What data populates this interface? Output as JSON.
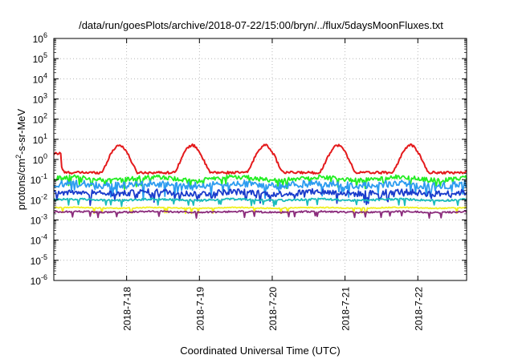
{
  "chart_data": {
    "type": "line",
    "title": "/data/run/goesPlots/archive/2018-07-22/15:00/bryn/../flux/5daysMoonFluxes.txt",
    "xlabel": "Coordinated Universal Time (UTC)",
    "ylabel": {
      "pre": "protons/cm",
      "sup": "2",
      "post": "-s-sr-MeV"
    },
    "yscale": "log",
    "ylim_exp": [
      -6,
      6
    ],
    "ytick_exps": [
      -6,
      -5,
      -4,
      -3,
      -2,
      -1,
      0,
      1,
      2,
      3,
      4,
      5,
      6
    ],
    "ytick_base": "10",
    "xlim_days": [
      0,
      5.67
    ],
    "xticks": [
      {
        "label": "2018-7-18",
        "day": 1
      },
      {
        "label": "2018-7-19",
        "day": 2
      },
      {
        "label": "2018-7-20",
        "day": 3
      },
      {
        "label": "2018-7-21",
        "day": 4
      },
      {
        "label": "2018-7-22",
        "day": 5
      }
    ],
    "grid": true,
    "series": [
      {
        "color": "#e41a1c",
        "base_log": -0.25,
        "amp": 0.6,
        "noise": 0.12,
        "kind": "red"
      },
      {
        "color": "#22ee22",
        "base_log": -0.95,
        "amp": 0.08,
        "noise": 0.22,
        "kind": "spiky"
      },
      {
        "color": "#2d9cf0",
        "base_log": -1.25,
        "amp": 0.05,
        "noise": 0.35,
        "kind": "spiky"
      },
      {
        "color": "#1a3ccc",
        "base_log": -1.65,
        "amp": 0.05,
        "noise": 0.3,
        "kind": "spiky"
      },
      {
        "color": "#1abcbc",
        "base_log": -2.0,
        "amp": 0.03,
        "noise": 0.1,
        "kind": "smooth"
      },
      {
        "color": "#f0f020",
        "base_log": -2.4,
        "amp": 0.02,
        "noise": 0.05,
        "kind": "smooth"
      },
      {
        "color": "#8b2c7c",
        "base_log": -2.6,
        "amp": 0.02,
        "noise": 0.08,
        "kind": "smooth"
      }
    ]
  }
}
